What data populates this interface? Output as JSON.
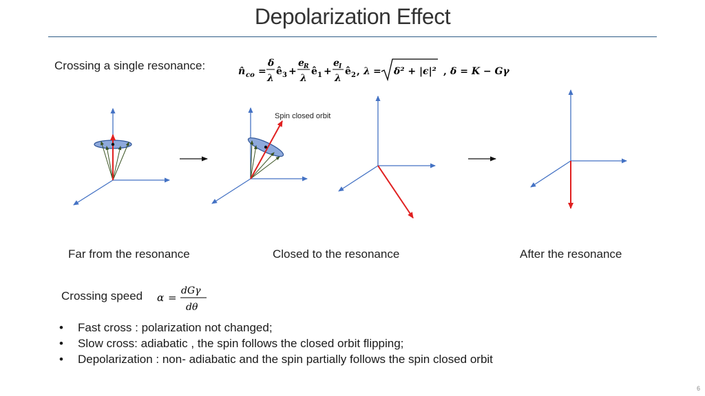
{
  "title": "Depolarization Effect",
  "section_label": "Crossing a single resonance:",
  "formula": {
    "lhs": "n̂",
    "lhs_sub": "co",
    "t1_num": "δ",
    "t1_den": "λ",
    "t1_vec": "ê",
    "t1_sub": "3",
    "t2_num": "e",
    "t2_num_sub": "R",
    "t2_den": "λ",
    "t2_vec": "ê",
    "t2_sub": "1",
    "t3_num": "e",
    "t3_num_sub": "I",
    "t3_den": "λ",
    "t3_vec": "ê",
    "t3_sub": "2",
    "lambda_lhs": "λ",
    "sqrt_body": "δ² + |ϵ|²",
    "delta_def": "δ = K − Gγ"
  },
  "diagram_annotation": "Spin closed orbit",
  "captions": {
    "far": "Far from the resonance",
    "closed": "Closed to the resonance",
    "after": "After the resonance"
  },
  "speed": {
    "label": "Crossing speed",
    "lhs": "α",
    "num": "dGγ",
    "den": "dθ"
  },
  "bullets": [
    "Fast cross : polarization not changed;",
    "Slow cross:  adiabatic , the spin follows the closed orbit flipping;",
    "Depolarization : non- adiabatic and the spin partially follows the spin closed orbit"
  ],
  "bullet_symbol": "•",
  "page_number": "6",
  "colors": {
    "axis": "#4472c4",
    "spin": "#e02020",
    "cone_fill": "#8ea9db",
    "cone_edge": "#2f5597",
    "precession": "#3b5323",
    "rule": "#2f5b86"
  }
}
